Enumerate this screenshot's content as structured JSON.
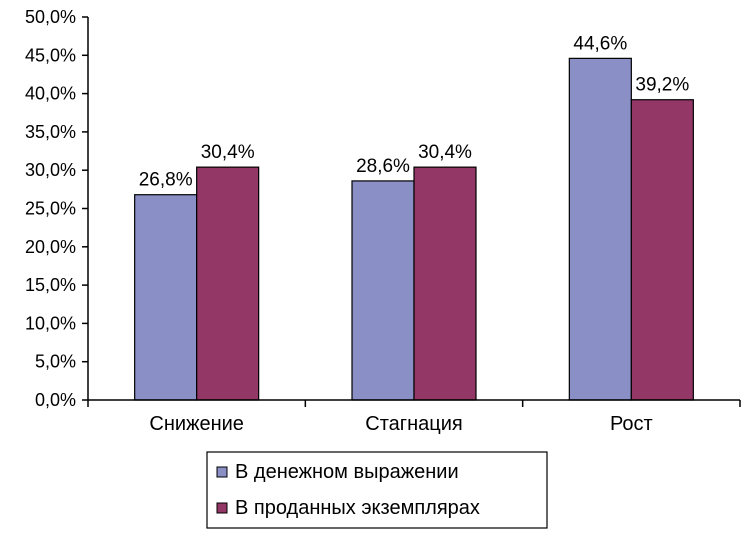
{
  "chart_data": {
    "type": "bar",
    "title": "",
    "xlabel": "",
    "ylabel": "",
    "categories": [
      "Снижение",
      "Стагнация",
      "Рост"
    ],
    "series": [
      {
        "name": "В денежном выражении",
        "values": [
          26.8,
          28.6,
          44.6
        ],
        "labels": [
          "26,8%",
          "28,6%",
          "44,6%"
        ],
        "color": "#8A8FC6"
      },
      {
        "name": "В проданных экземплярах",
        "values": [
          30.4,
          30.4,
          39.2
        ],
        "labels": [
          "30,4%",
          "30,4%",
          "39,2%"
        ],
        "color": "#933767"
      }
    ],
    "ylim": [
      0,
      50
    ],
    "yticks": [
      0,
      5,
      10,
      15,
      20,
      25,
      30,
      35,
      40,
      45,
      50
    ],
    "ytick_labels": [
      "0,0%",
      "5,0%",
      "10,0%",
      "15,0%",
      "20,0%",
      "25,0%",
      "30,0%",
      "35,0%",
      "40,0%",
      "45,0%",
      "50,0%"
    ],
    "grid": false,
    "legend_position": "bottom"
  }
}
